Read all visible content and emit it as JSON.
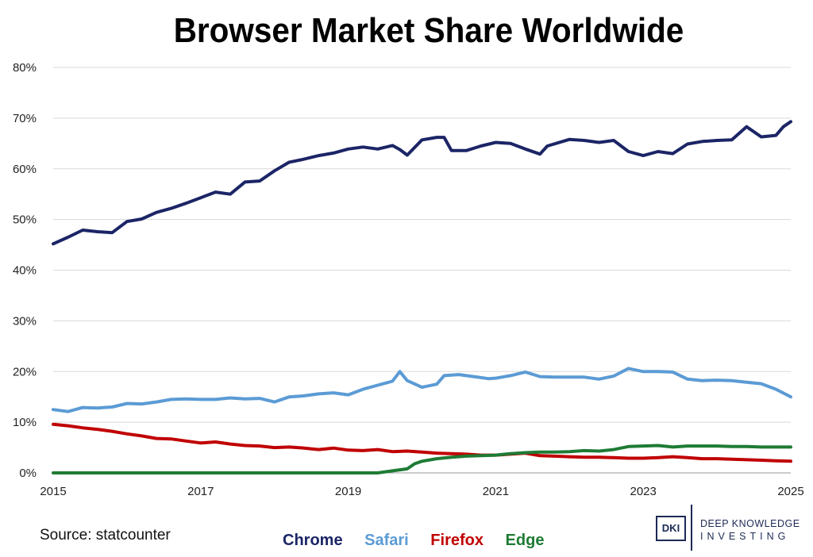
{
  "chart_data": {
    "type": "line",
    "title": "Browser Market Share Worldwide",
    "xlabel": "",
    "ylabel": "",
    "xlim": [
      2015,
      2025
    ],
    "ylim": [
      0,
      80
    ],
    "x_ticks": [
      "2015",
      "2017",
      "2019",
      "2021",
      "2023",
      "2025"
    ],
    "y_ticks": [
      "0%",
      "10%",
      "20%",
      "30%",
      "40%",
      "50%",
      "60%",
      "70%",
      "80%"
    ],
    "grid": true,
    "legend_position": "bottom",
    "series": [
      {
        "name": "Chrome",
        "color": "#1b2566",
        "points": [
          [
            2015.0,
            45.2
          ],
          [
            2015.2,
            46.5
          ],
          [
            2015.4,
            47.9
          ],
          [
            2015.6,
            47.6
          ],
          [
            2015.8,
            47.4
          ],
          [
            2016.0,
            49.6
          ],
          [
            2016.2,
            50.1
          ],
          [
            2016.4,
            51.4
          ],
          [
            2016.6,
            52.2
          ],
          [
            2016.8,
            53.2
          ],
          [
            2017.0,
            54.3
          ],
          [
            2017.2,
            55.4
          ],
          [
            2017.4,
            55.0
          ],
          [
            2017.6,
            57.4
          ],
          [
            2017.8,
            57.6
          ],
          [
            2018.0,
            59.6
          ],
          [
            2018.2,
            61.3
          ],
          [
            2018.4,
            61.9
          ],
          [
            2018.6,
            62.6
          ],
          [
            2018.8,
            63.1
          ],
          [
            2019.0,
            63.9
          ],
          [
            2019.2,
            64.3
          ],
          [
            2019.4,
            63.9
          ],
          [
            2019.6,
            64.6
          ],
          [
            2019.7,
            63.8
          ],
          [
            2019.8,
            62.7
          ],
          [
            2020.0,
            65.7
          ],
          [
            2020.2,
            66.2
          ],
          [
            2020.3,
            66.2
          ],
          [
            2020.4,
            63.6
          ],
          [
            2020.6,
            63.6
          ],
          [
            2020.8,
            64.5
          ],
          [
            2021.0,
            65.2
          ],
          [
            2021.2,
            65.0
          ],
          [
            2021.4,
            63.9
          ],
          [
            2021.6,
            62.9
          ],
          [
            2021.7,
            64.5
          ],
          [
            2022.0,
            65.8
          ],
          [
            2022.2,
            65.6
          ],
          [
            2022.4,
            65.2
          ],
          [
            2022.6,
            65.6
          ],
          [
            2022.8,
            63.4
          ],
          [
            2023.0,
            62.6
          ],
          [
            2023.2,
            63.4
          ],
          [
            2023.4,
            63.0
          ],
          [
            2023.6,
            64.9
          ],
          [
            2023.8,
            65.4
          ],
          [
            2024.0,
            65.6
          ],
          [
            2024.2,
            65.7
          ],
          [
            2024.4,
            68.3
          ],
          [
            2024.6,
            66.3
          ],
          [
            2024.8,
            66.6
          ],
          [
            2024.9,
            68.3
          ],
          [
            2025.0,
            69.3
          ]
        ]
      },
      {
        "name": "Safari",
        "color": "#5b9bd5",
        "points": [
          [
            2015.0,
            12.5
          ],
          [
            2015.2,
            12.1
          ],
          [
            2015.4,
            12.9
          ],
          [
            2015.6,
            12.8
          ],
          [
            2015.8,
            13.0
          ],
          [
            2016.0,
            13.7
          ],
          [
            2016.2,
            13.6
          ],
          [
            2016.4,
            14.0
          ],
          [
            2016.6,
            14.5
          ],
          [
            2016.8,
            14.6
          ],
          [
            2017.0,
            14.5
          ],
          [
            2017.2,
            14.5
          ],
          [
            2017.4,
            14.8
          ],
          [
            2017.6,
            14.6
          ],
          [
            2017.8,
            14.7
          ],
          [
            2018.0,
            14.0
          ],
          [
            2018.2,
            15.0
          ],
          [
            2018.4,
            15.2
          ],
          [
            2018.6,
            15.6
          ],
          [
            2018.8,
            15.8
          ],
          [
            2019.0,
            15.4
          ],
          [
            2019.2,
            16.5
          ],
          [
            2019.4,
            17.3
          ],
          [
            2019.6,
            18.1
          ],
          [
            2019.7,
            20.0
          ],
          [
            2019.8,
            18.2
          ],
          [
            2020.0,
            16.9
          ],
          [
            2020.2,
            17.5
          ],
          [
            2020.3,
            19.2
          ],
          [
            2020.5,
            19.4
          ],
          [
            2020.7,
            19.0
          ],
          [
            2020.9,
            18.6
          ],
          [
            2021.0,
            18.7
          ],
          [
            2021.2,
            19.2
          ],
          [
            2021.4,
            19.9
          ],
          [
            2021.6,
            19.0
          ],
          [
            2021.8,
            18.9
          ],
          [
            2022.0,
            18.9
          ],
          [
            2022.2,
            18.9
          ],
          [
            2022.4,
            18.5
          ],
          [
            2022.6,
            19.1
          ],
          [
            2022.8,
            20.6
          ],
          [
            2023.0,
            20.0
          ],
          [
            2023.2,
            20.0
          ],
          [
            2023.4,
            19.9
          ],
          [
            2023.6,
            18.5
          ],
          [
            2023.8,
            18.2
          ],
          [
            2024.0,
            18.3
          ],
          [
            2024.2,
            18.2
          ],
          [
            2024.4,
            17.9
          ],
          [
            2024.6,
            17.6
          ],
          [
            2024.8,
            16.5
          ],
          [
            2025.0,
            15.0
          ]
        ]
      },
      {
        "name": "Firefox",
        "color": "#c00000",
        "points": [
          [
            2015.0,
            9.6
          ],
          [
            2015.2,
            9.3
          ],
          [
            2015.4,
            8.9
          ],
          [
            2015.6,
            8.6
          ],
          [
            2015.8,
            8.2
          ],
          [
            2016.0,
            7.7
          ],
          [
            2016.2,
            7.3
          ],
          [
            2016.4,
            6.8
          ],
          [
            2016.6,
            6.7
          ],
          [
            2016.8,
            6.3
          ],
          [
            2017.0,
            5.9
          ],
          [
            2017.2,
            6.1
          ],
          [
            2017.4,
            5.7
          ],
          [
            2017.6,
            5.4
          ],
          [
            2017.8,
            5.3
          ],
          [
            2018.0,
            5.0
          ],
          [
            2018.2,
            5.1
          ],
          [
            2018.4,
            4.9
          ],
          [
            2018.6,
            4.6
          ],
          [
            2018.8,
            4.9
          ],
          [
            2019.0,
            4.5
          ],
          [
            2019.2,
            4.4
          ],
          [
            2019.4,
            4.6
          ],
          [
            2019.6,
            4.2
          ],
          [
            2019.8,
            4.3
          ],
          [
            2020.0,
            4.1
          ],
          [
            2020.2,
            3.9
          ],
          [
            2020.4,
            3.8
          ],
          [
            2020.6,
            3.7
          ],
          [
            2020.8,
            3.5
          ],
          [
            2021.0,
            3.5
          ],
          [
            2021.2,
            3.7
          ],
          [
            2021.4,
            3.9
          ],
          [
            2021.6,
            3.4
          ],
          [
            2021.8,
            3.3
          ],
          [
            2022.0,
            3.2
          ],
          [
            2022.2,
            3.1
          ],
          [
            2022.4,
            3.1
          ],
          [
            2022.6,
            3.0
          ],
          [
            2022.8,
            2.9
          ],
          [
            2023.0,
            2.9
          ],
          [
            2023.2,
            3.0
          ],
          [
            2023.4,
            3.2
          ],
          [
            2023.6,
            3.0
          ],
          [
            2023.8,
            2.8
          ],
          [
            2024.0,
            2.8
          ],
          [
            2024.2,
            2.7
          ],
          [
            2024.4,
            2.6
          ],
          [
            2024.6,
            2.5
          ],
          [
            2024.8,
            2.4
          ],
          [
            2025.0,
            2.3
          ]
        ]
      },
      {
        "name": "Edge",
        "color": "#1e7b34",
        "points": [
          [
            2015.0,
            0
          ],
          [
            2019.4,
            0
          ],
          [
            2019.6,
            0.4
          ],
          [
            2019.8,
            0.8
          ],
          [
            2019.9,
            1.8
          ],
          [
            2020.0,
            2.3
          ],
          [
            2020.2,
            2.8
          ],
          [
            2020.4,
            3.1
          ],
          [
            2020.6,
            3.3
          ],
          [
            2020.8,
            3.4
          ],
          [
            2021.0,
            3.5
          ],
          [
            2021.2,
            3.8
          ],
          [
            2021.4,
            4.0
          ],
          [
            2021.6,
            4.1
          ],
          [
            2021.8,
            4.1
          ],
          [
            2022.0,
            4.2
          ],
          [
            2022.2,
            4.4
          ],
          [
            2022.4,
            4.3
          ],
          [
            2022.6,
            4.6
          ],
          [
            2022.8,
            5.2
          ],
          [
            2023.0,
            5.3
          ],
          [
            2023.2,
            5.4
          ],
          [
            2023.4,
            5.1
          ],
          [
            2023.6,
            5.3
          ],
          [
            2023.8,
            5.3
          ],
          [
            2024.0,
            5.3
          ],
          [
            2024.2,
            5.2
          ],
          [
            2024.4,
            5.2
          ],
          [
            2024.6,
            5.1
          ],
          [
            2024.8,
            5.1
          ],
          [
            2025.0,
            5.1
          ]
        ]
      }
    ]
  },
  "source": "Source: statcounter",
  "legend": [
    "Chrome",
    "Safari",
    "Firefox",
    "Edge"
  ],
  "logo": {
    "mark": "DKI",
    "line1": "DEEP KNOWLEDGE",
    "line2": "INVESTING"
  }
}
